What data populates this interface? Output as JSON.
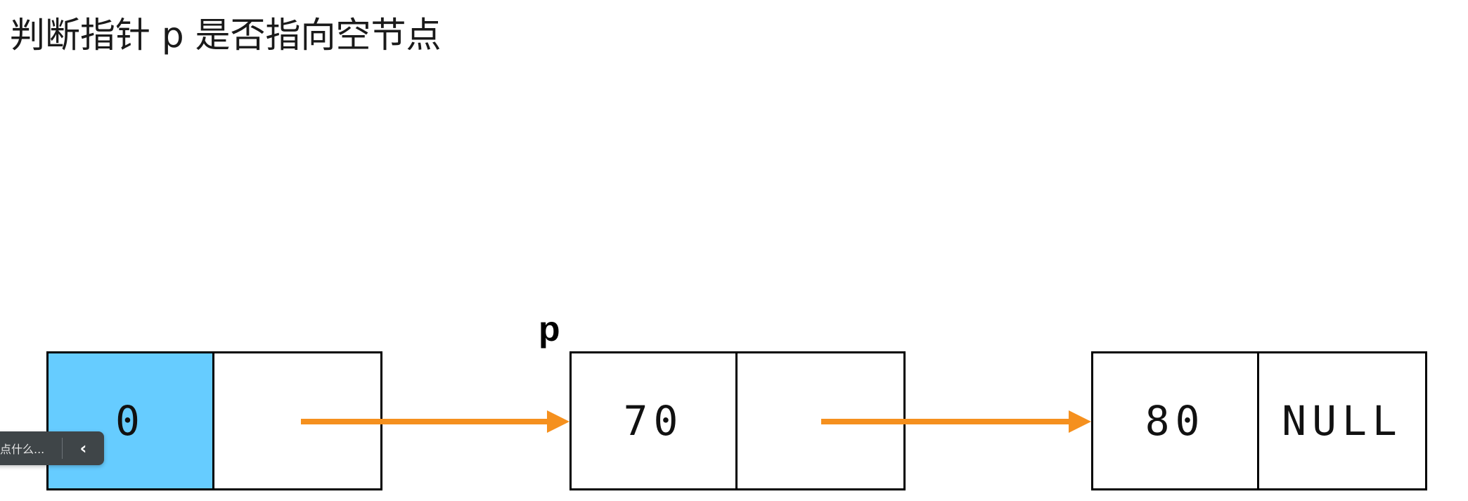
{
  "title": "判断指针 p 是否指向空节点",
  "pointer_label": "p",
  "nodes": [
    {
      "data": "0",
      "next": ""
    },
    {
      "data": "70",
      "next": ""
    },
    {
      "data": "80",
      "next": "NULL"
    }
  ],
  "colors": {
    "head_cell": "#66ccff",
    "arrow": "#f5901e",
    "border": "#000000"
  },
  "overlay": {
    "hint": "点什么...",
    "collapse_icon": "chevron-left-icon",
    "collapse_glyph": "‹"
  }
}
